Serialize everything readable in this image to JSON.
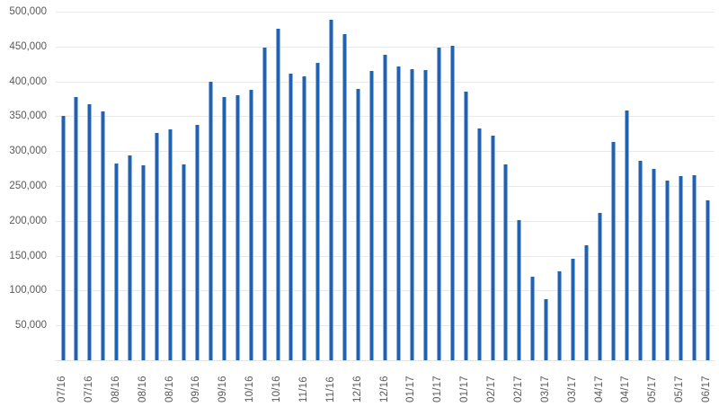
{
  "chart_data": {
    "type": "bar",
    "title": "",
    "xlabel": "",
    "ylabel": "",
    "ylim": [
      0,
      500000
    ],
    "grid": true,
    "legend": "none",
    "y_tick_labels": [
      "500,000",
      "450,000",
      "400,000",
      "350,000",
      "300,000",
      "250,000",
      "200,000",
      "150,000",
      "100,000",
      "50,000"
    ],
    "y_tick_values": [
      500000,
      450000,
      400000,
      350000,
      300000,
      250000,
      200000,
      150000,
      100000,
      50000
    ],
    "x_tick_labels": [
      "07/16",
      "07/16",
      "08/16",
      "08/16",
      "08/16",
      "09/16",
      "09/16",
      "10/16",
      "10/16",
      "11/16",
      "11/16",
      "12/16",
      "12/16",
      "01/17",
      "01/17",
      "01/17",
      "02/17",
      "02/17",
      "03/17",
      "03/17",
      "04/17",
      "04/17",
      "05/17",
      "05/17",
      "06/17"
    ],
    "x_label_every_n_bars": 2,
    "values": [
      351000,
      377000,
      367000,
      357000,
      282000,
      294000,
      279000,
      326000,
      331000,
      281000,
      338000,
      399000,
      377000,
      380000,
      388000,
      448000,
      475000,
      411000,
      407000,
      426000,
      489000,
      468000,
      389000,
      415000,
      438000,
      421000,
      418000,
      416000,
      449000,
      451000,
      385000,
      333000,
      322000,
      281000,
      201000,
      120000,
      87000,
      128000,
      146000,
      165000,
      211000,
      313000,
      358000,
      286000,
      274000,
      258000,
      264000,
      266000,
      229000
    ],
    "colors": {
      "bar_core": "#1e62b0",
      "bar_edge": "#8fb0dc",
      "gridline": "#e9e9e9",
      "tick_text": "#595959",
      "background": "#ffffff"
    }
  }
}
